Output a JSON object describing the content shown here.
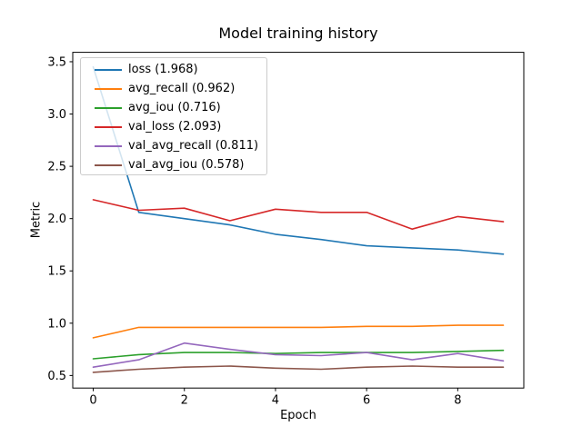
{
  "figure": {
    "background": "#ffffff"
  },
  "chart_data": {
    "type": "line",
    "title": "Model training history",
    "xlabel": "Epoch",
    "ylabel": "Metric",
    "x": [
      0,
      1,
      2,
      3,
      4,
      5,
      6,
      7,
      8,
      9
    ],
    "xlim": [
      -0.45,
      9.45
    ],
    "ylim": [
      0.38,
      3.59
    ],
    "grid": false,
    "legend_position": "upper left",
    "legend_frame_color": "#cccccc",
    "legend_background": "rgba(255,255,255,0.8)",
    "x_ticks": [
      {
        "value": 0,
        "label": "0"
      },
      {
        "value": 2,
        "label": "2"
      },
      {
        "value": 4,
        "label": "4"
      },
      {
        "value": 6,
        "label": "6"
      },
      {
        "value": 8,
        "label": "8"
      }
    ],
    "y_ticks": [
      {
        "value": 0.5,
        "label": "0.5"
      },
      {
        "value": 1.0,
        "label": "1.0"
      },
      {
        "value": 1.5,
        "label": "1.5"
      },
      {
        "value": 2.0,
        "label": "2.0"
      },
      {
        "value": 2.5,
        "label": "2.5"
      },
      {
        "value": 3.0,
        "label": "3.0"
      },
      {
        "value": 3.5,
        "label": "3.5"
      }
    ],
    "series": [
      {
        "name": "loss",
        "legend_label": "loss (1.968)",
        "color": "#1f77b4",
        "values": [
          3.45,
          2.06,
          2.0,
          1.94,
          1.85,
          1.8,
          1.74,
          1.72,
          1.7,
          1.66
        ]
      },
      {
        "name": "avg_recall",
        "legend_label": "avg_recall (0.962)",
        "color": "#ff7f0e",
        "values": [
          0.86,
          0.96,
          0.96,
          0.96,
          0.96,
          0.96,
          0.97,
          0.97,
          0.98,
          0.98
        ]
      },
      {
        "name": "avg_iou",
        "legend_label": "avg_iou (0.716)",
        "color": "#2ca02c",
        "values": [
          0.66,
          0.7,
          0.72,
          0.72,
          0.71,
          0.72,
          0.72,
          0.72,
          0.73,
          0.74
        ]
      },
      {
        "name": "val_loss",
        "legend_label": "val_loss (2.093)",
        "color": "#d62728",
        "values": [
          2.18,
          2.08,
          2.1,
          1.98,
          2.09,
          2.06,
          2.06,
          1.9,
          2.02,
          1.97
        ]
      },
      {
        "name": "val_avg_recall",
        "legend_label": "val_avg_recall (0.811)",
        "color": "#9467bd",
        "values": [
          0.58,
          0.65,
          0.81,
          0.75,
          0.7,
          0.69,
          0.72,
          0.65,
          0.71,
          0.64
        ]
      },
      {
        "name": "val_avg_iou",
        "legend_label": "val_avg_iou (0.578)",
        "color": "#8c564b",
        "values": [
          0.53,
          0.56,
          0.58,
          0.59,
          0.57,
          0.56,
          0.58,
          0.59,
          0.58,
          0.58
        ]
      }
    ]
  }
}
